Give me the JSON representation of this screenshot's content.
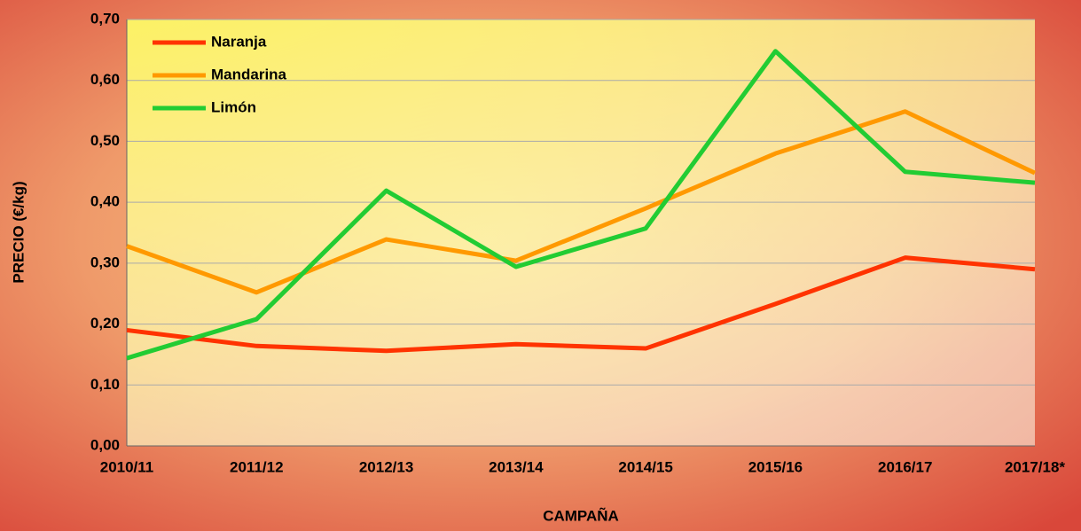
{
  "chart_data": {
    "type": "line",
    "x_label": "CAMPAÑA",
    "y_label": "PRECIO (€/kg)",
    "categories": [
      "2010/11",
      "2011/12",
      "2012/13",
      "2013/14",
      "2014/15",
      "2015/16",
      "2016/17",
      "2017/18*"
    ],
    "series": [
      {
        "name": "Naranja",
        "color": "#ff3300",
        "values": [
          0.19,
          0.164,
          0.156,
          0.167,
          0.16,
          0.233,
          0.309,
          0.29
        ]
      },
      {
        "name": "Mandarina",
        "color": "#ff9900",
        "values": [
          0.328,
          0.252,
          0.339,
          0.304,
          0.39,
          0.48,
          0.549,
          0.448
        ]
      },
      {
        "name": "Limón",
        "color": "#22cc33",
        "values": [
          0.144,
          0.208,
          0.419,
          0.294,
          0.357,
          0.648,
          0.45,
          0.432
        ]
      }
    ],
    "ylim": [
      0,
      0.7
    ],
    "yticks": [
      {
        "value": 0,
        "label": "0,00"
      },
      {
        "value": 0.1,
        "label": "0,10"
      },
      {
        "value": 0.2,
        "label": "0,20"
      },
      {
        "value": 0.3,
        "label": "0,30"
      },
      {
        "value": 0.4,
        "label": "0,40"
      },
      {
        "value": 0.5,
        "label": "0,50"
      },
      {
        "value": 0.6,
        "label": "0,60"
      },
      {
        "value": 0.7,
        "label": "0,70"
      }
    ],
    "grid": true,
    "legend": "upper left"
  }
}
